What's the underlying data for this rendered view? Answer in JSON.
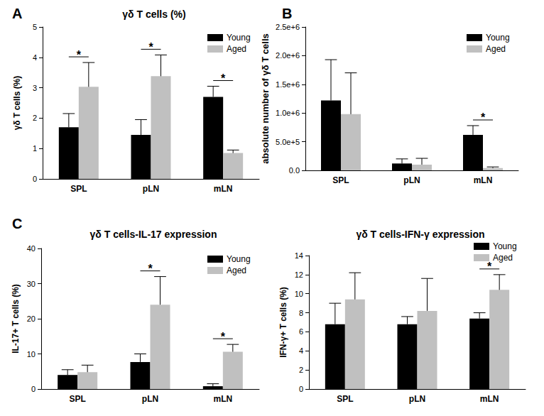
{
  "chart_data": [
    {
      "type": "bar",
      "panel_label": "A",
      "title": "γδ T cells (%)",
      "ylabel": "γδ T cells (%)",
      "categories": [
        "SPL",
        "pLN",
        "mLN"
      ],
      "series": [
        {
          "name": "Young",
          "color": "#000000",
          "values": [
            1.7,
            1.45,
            2.7
          ],
          "errors": [
            0.45,
            0.5,
            0.35
          ]
        },
        {
          "name": "Aged",
          "color": "#c0c0c0",
          "values": [
            3.03,
            3.38,
            0.85
          ],
          "errors": [
            0.8,
            0.7,
            0.1
          ]
        }
      ],
      "ylim": [
        0,
        5
      ],
      "yticks": [
        0,
        1,
        2,
        3,
        4,
        5
      ],
      "grid": false,
      "legend": "upper right",
      "annotations": [
        {
          "text": "*",
          "category": "SPL"
        },
        {
          "text": "*",
          "category": "pLN"
        },
        {
          "text": "*",
          "category": "mLN"
        }
      ]
    },
    {
      "type": "bar",
      "panel_label": "B",
      "ylabel": "absolute number of γδ T cells",
      "categories": [
        "SPL",
        "pLN",
        "mLN"
      ],
      "series": [
        {
          "name": "Young",
          "color": "#000000",
          "values": [
            1220000,
            120000,
            620000
          ],
          "errors": [
            710000,
            80000,
            160000
          ]
        },
        {
          "name": "Aged",
          "color": "#c0c0c0",
          "values": [
            980000,
            100000,
            40000
          ],
          "errors": [
            720000,
            110000,
            20000
          ]
        }
      ],
      "ylim": [
        0,
        2500000
      ],
      "yticks": [
        {
          "value": 0,
          "label": "0.0"
        },
        {
          "value": 500000,
          "label": "5.0e+5"
        },
        {
          "value": 1000000,
          "label": "1.0e+6"
        },
        {
          "value": 1500000,
          "label": "1.5e+6"
        },
        {
          "value": 2000000,
          "label": "2.0e+6"
        },
        {
          "value": 2500000,
          "label": "2.5e+6"
        }
      ],
      "grid": false,
      "legend": "upper right",
      "annotations": [
        {
          "text": "*",
          "category": "mLN"
        }
      ]
    },
    {
      "type": "bar",
      "panel_label": "C",
      "title": "γδ T cells-IL-17 expression",
      "ylabel": "IL-17+ T cells (%)",
      "categories": [
        "SPL",
        "pLN",
        "mLN"
      ],
      "series": [
        {
          "name": "Young",
          "color": "#000000",
          "values": [
            4.0,
            7.7,
            0.8
          ],
          "errors": [
            1.5,
            2.3,
            0.7
          ]
        },
        {
          "name": "Aged",
          "color": "#c0c0c0",
          "values": [
            4.8,
            24.0,
            10.6
          ],
          "errors": [
            2.0,
            8.0,
            2.1
          ]
        }
      ],
      "ylim": [
        0,
        40
      ],
      "yticks": [
        0,
        10,
        20,
        30,
        40
      ],
      "grid": false,
      "legend": "upper right",
      "annotations": [
        {
          "text": "*",
          "category": "pLN"
        },
        {
          "text": "*",
          "category": "mLN"
        }
      ]
    },
    {
      "type": "bar",
      "title": "γδ T cells-IFN-γ expression",
      "ylabel": "IFN-γ+ T cells (%)",
      "categories": [
        "SPL",
        "pLN",
        "mLN"
      ],
      "series": [
        {
          "name": "Young",
          "color": "#000000",
          "values": [
            6.8,
            6.8,
            7.4
          ],
          "errors": [
            2.2,
            0.8,
            0.6
          ]
        },
        {
          "name": "Aged",
          "color": "#c0c0c0",
          "values": [
            9.4,
            8.2,
            10.4
          ],
          "errors": [
            2.8,
            3.4,
            1.6
          ]
        }
      ],
      "ylim": [
        0,
        14
      ],
      "yticks": [
        0,
        2,
        4,
        6,
        8,
        10,
        12,
        14
      ],
      "grid": false,
      "legend": "upper right",
      "annotations": [
        {
          "text": "*",
          "category": "mLN"
        }
      ]
    }
  ]
}
